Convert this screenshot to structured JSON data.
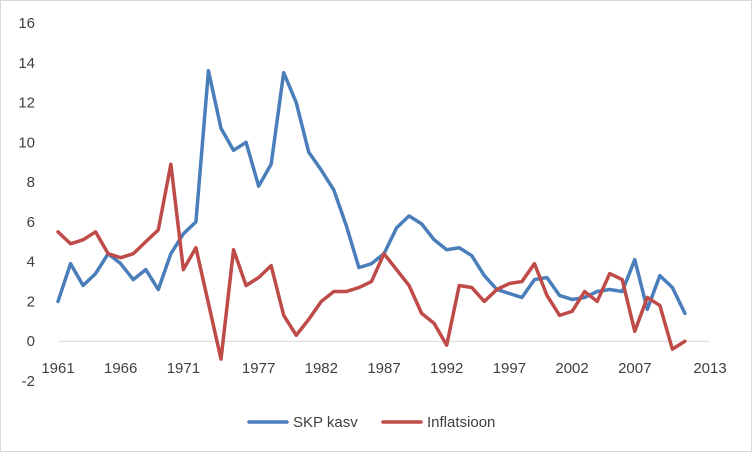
{
  "chart_data": {
    "type": "line",
    "title": "",
    "xlabel": "",
    "ylabel": "",
    "xlim": [
      1961,
      2013
    ],
    "ylim": [
      -2,
      16
    ],
    "y_ticks": [
      -2,
      0,
      2,
      4,
      6,
      8,
      10,
      12,
      14,
      16
    ],
    "x_ticks": [
      1961,
      1966,
      1971,
      1977,
      1982,
      1987,
      1992,
      1997,
      2002,
      2007,
      2013
    ],
    "grid": false,
    "legend_position": "bottom",
    "x": [
      1961,
      1962,
      1963,
      1964,
      1965,
      1966,
      1967,
      1968,
      1969,
      1970,
      1971,
      1972,
      1973,
      1974,
      1975,
      1976,
      1977,
      1978,
      1979,
      1980,
      1981,
      1982,
      1983,
      1984,
      1985,
      1986,
      1987,
      1988,
      1989,
      1990,
      1991,
      1992,
      1993,
      1994,
      1995,
      1996,
      1997,
      1998,
      1999,
      2000,
      2001,
      2002,
      2003,
      2004,
      2005,
      2006,
      2007,
      2008,
      2009,
      2010,
      2011,
      2012,
      2013
    ],
    "series": [
      {
        "name": "SKP kasv",
        "color": "#4a7ebb",
        "values": [
          2.0,
          3.9,
          2.8,
          3.4,
          4.4,
          3.9,
          3.1,
          3.6,
          2.6,
          4.4,
          5.4,
          6.0,
          13.6,
          10.7,
          9.6,
          10.0,
          7.8,
          8.9,
          13.5,
          12.0,
          9.5,
          8.6,
          7.6,
          5.8,
          3.7,
          3.9,
          4.4,
          5.7,
          6.3,
          5.9,
          5.1,
          4.6,
          4.7,
          4.3,
          3.3,
          2.6,
          2.4,
          2.2,
          3.1,
          3.2,
          2.3,
          2.1,
          2.2,
          2.5,
          2.6,
          2.5,
          4.1,
          1.6,
          3.3,
          2.7,
          1.4,
          null,
          null
        ]
      },
      {
        "name": "Inflatsioon",
        "color": "#be4b48",
        "values": [
          5.5,
          4.9,
          5.1,
          5.5,
          4.4,
          4.2,
          4.4,
          5.0,
          5.6,
          8.9,
          3.6,
          4.7,
          1.9,
          -0.9,
          4.6,
          2.8,
          3.2,
          3.8,
          1.3,
          0.3,
          1.1,
          2.0,
          2.5,
          2.5,
          2.7,
          3.0,
          4.4,
          3.6,
          2.8,
          1.4,
          0.9,
          -0.2,
          2.8,
          2.7,
          2.0,
          2.6,
          2.9,
          3.0,
          3.9,
          2.3,
          1.3,
          1.5,
          2.5,
          2.0,
          3.4,
          3.1,
          0.5,
          2.2,
          1.8,
          -0.4,
          0.0,
          null,
          null
        ]
      }
    ]
  }
}
